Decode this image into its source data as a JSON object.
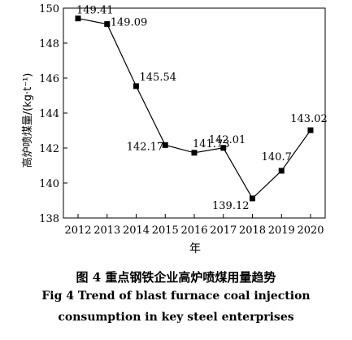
{
  "chart_data": {
    "type": "line",
    "x": [
      "2012",
      "2013",
      "2014",
      "2015",
      "2016",
      "2017",
      "2018",
      "2019",
      "2020"
    ],
    "series": [
      {
        "values": [
          149.41,
          149.09,
          145.54,
          142.17,
          141.73,
          142.01,
          139.12,
          140.7,
          143.02
        ],
        "labels": [
          "149.41",
          "149.09",
          "145.54",
          "142.17",
          "141.73",
          "142.01",
          "139.12",
          "140.7",
          "143.02"
        ],
        "marker": "square",
        "color": "#000000"
      }
    ],
    "xlabel": "年",
    "ylabel": "高炉喷煤量/(kg·t⁻¹)",
    "ylim": [
      138,
      150
    ],
    "yticks": [
      "138",
      "140",
      "142",
      "144",
      "146",
      "148",
      "150"
    ],
    "grid": false
  },
  "caption": {
    "zh": "图 4    重点钢铁企业高炉喷煤用量趋势",
    "en_line1": "Fig 4    Trend of blast furnace coal injection",
    "en_line2": "consumption in key steel enterprises"
  }
}
